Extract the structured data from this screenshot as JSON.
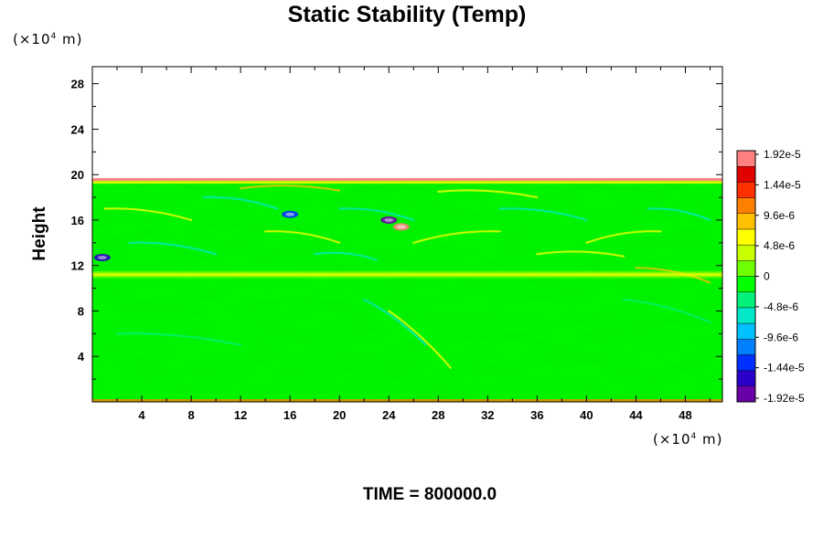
{
  "chart_data": {
    "type": "heatmap",
    "title": "Static Stability (Temp)",
    "ylabel": "Height",
    "x_unit_prefix": "(×10",
    "x_unit_exp": "4",
    "x_unit_suffix": " m)",
    "y_unit_prefix": "(×10",
    "y_unit_exp": "4",
    "y_unit_suffix": " m)",
    "xlim": [
      0,
      51
    ],
    "ylim": [
      0,
      29.5
    ],
    "x_ticks": [
      4,
      8,
      12,
      16,
      20,
      24,
      28,
      32,
      36,
      40,
      44,
      48
    ],
    "y_ticks": [
      4,
      8,
      12,
      16,
      20,
      24,
      28
    ],
    "field_top": 19.6,
    "colorbar": {
      "min": -1.92e-05,
      "max": 1.92e-05,
      "labels": [
        "1.92e-5",
        "1.44e-5",
        "9.6e-6",
        "4.8e-6",
        "0",
        "-4.8e-6",
        "-9.6e-6",
        "-1.44e-5",
        "-1.92e-5"
      ],
      "colors": [
        "#6a00a8",
        "#2a00c8",
        "#0030ff",
        "#0080ff",
        "#00c0ff",
        "#00e8c8",
        "#00f07a",
        "#00ff00",
        "#70ff00",
        "#c8ff00",
        "#ffff00",
        "#ffc000",
        "#ff8000",
        "#ff3000",
        "#e00000",
        "#ff8080"
      ]
    },
    "features": [
      {
        "kind": "tropopause-band",
        "x": [
          0,
          51
        ],
        "y": 11.2,
        "value": 8e-06
      },
      {
        "kind": "top-band",
        "x": [
          0,
          51
        ],
        "y": 19.4,
        "value": 1.9e-05
      },
      {
        "kind": "vortex",
        "x": 24,
        "y": 16,
        "value": -1.9e-05
      },
      {
        "kind": "vortex",
        "x": 25,
        "y": 15.4,
        "value": 1.9e-05
      },
      {
        "kind": "vortex",
        "x": 0.8,
        "y": 12.7,
        "value": -1.6e-05
      },
      {
        "kind": "vortex",
        "x": 16,
        "y": 16.5,
        "value": -1.2e-05
      }
    ],
    "time_label": "TIME = 800000.0"
  }
}
